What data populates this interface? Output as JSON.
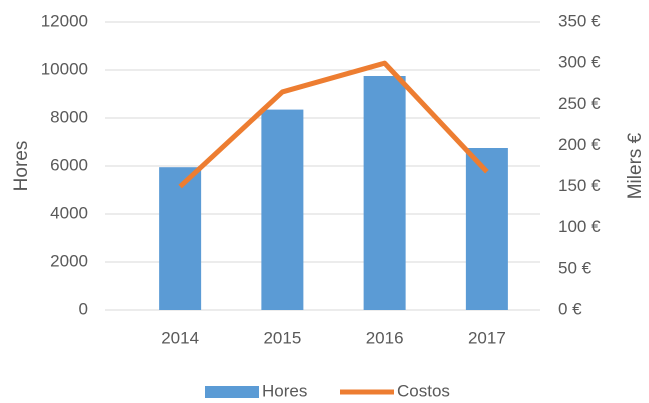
{
  "chart_data": {
    "type": "bar",
    "categories": [
      "2014",
      "2015",
      "2016",
      "2017"
    ],
    "series": [
      {
        "name": "Hores",
        "type": "bar",
        "color": "#5b9bd5",
        "values": [
          5950,
          8350,
          9750,
          6750
        ]
      },
      {
        "name": "Costos",
        "type": "line",
        "axis": "y2",
        "color": "#ed7d31",
        "values": [
          150,
          265,
          300,
          168
        ]
      }
    ],
    "ylabel": "Hores",
    "y2label": "Milers €",
    "ylim": [
      0,
      12000
    ],
    "yticks": [
      0,
      2000,
      4000,
      6000,
      8000,
      10000,
      12000
    ],
    "y2lim": [
      0,
      350
    ],
    "y2ticks": [
      {
        "value": 0,
        "label": "0 €"
      },
      {
        "value": 50,
        "label": "50 €"
      },
      {
        "value": 100,
        "label": "100 €"
      },
      {
        "value": 150,
        "label": "150 €"
      },
      {
        "value": 200,
        "label": "200 €"
      },
      {
        "value": 250,
        "label": "250 €"
      },
      {
        "value": 300,
        "label": "300 €"
      },
      {
        "value": 350,
        "label": "350 €"
      }
    ],
    "grid": true,
    "legend": "bottom"
  }
}
